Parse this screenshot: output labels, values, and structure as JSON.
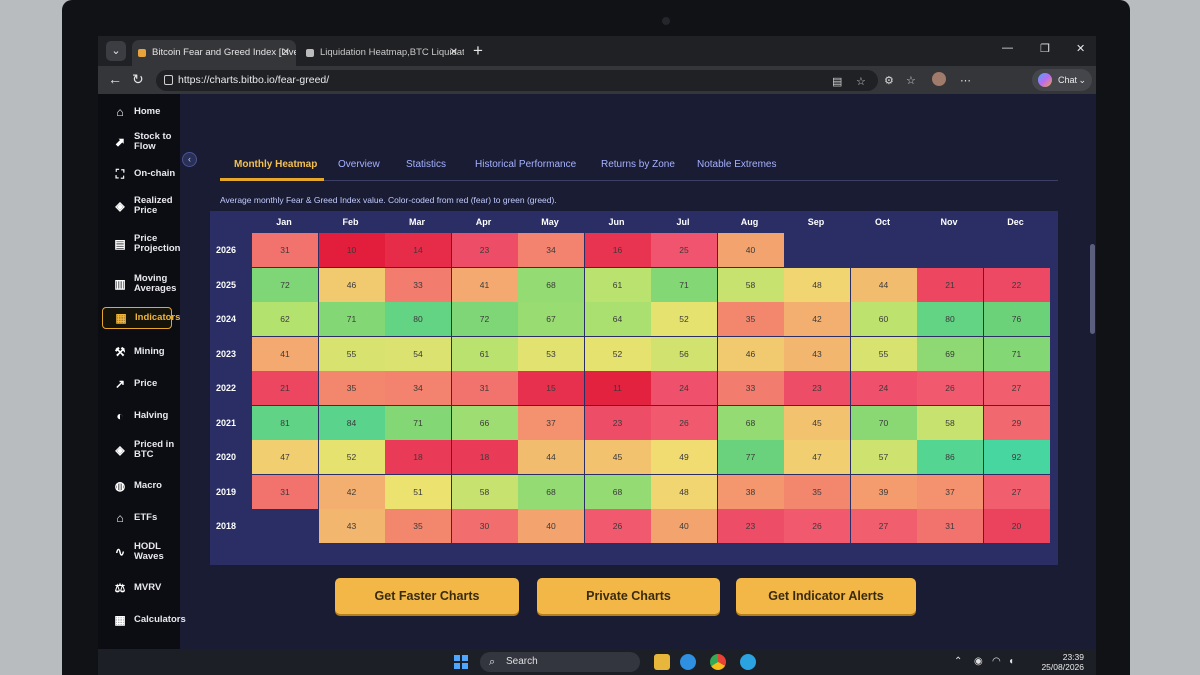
{
  "browser": {
    "tabs": [
      {
        "title": "Bitcoin Fear and Greed Index [Live",
        "active": true
      },
      {
        "title": "Liquidation Heatmap,BTC Liquidat",
        "active": false
      }
    ],
    "url": "https://charts.bitbo.io/fear-greed/",
    "chat_label": "Chat"
  },
  "sidebar": {
    "items": [
      {
        "label": "Home",
        "icon": "home-icon",
        "glyph": "⌂"
      },
      {
        "label": "Stock to Flow",
        "icon": "trend-chart-icon",
        "glyph": "⬈"
      },
      {
        "label": "On-chain",
        "icon": "network-icon",
        "glyph": "⛶"
      },
      {
        "label": "Realized Price",
        "icon": "tag-icon",
        "glyph": "◈"
      },
      {
        "label": "Price Projection",
        "icon": "projection-chart-icon",
        "glyph": "▤"
      },
      {
        "label": "Moving Averages",
        "icon": "bar-trend-icon",
        "glyph": "▥"
      },
      {
        "label": "Indicators",
        "icon": "indicators-icon",
        "glyph": "▦"
      },
      {
        "label": "Mining",
        "icon": "mining-icon",
        "glyph": "⚒"
      },
      {
        "label": "Price",
        "icon": "price-trend-icon",
        "glyph": "↗"
      },
      {
        "label": "Halving",
        "icon": "halving-icon",
        "glyph": "◐"
      },
      {
        "label": "Priced in BTC",
        "icon": "btc-tag-icon",
        "glyph": "◈"
      },
      {
        "label": "Macro",
        "icon": "globe-icon",
        "glyph": "◍"
      },
      {
        "label": "ETFs",
        "icon": "bank-icon",
        "glyph": "⌂"
      },
      {
        "label": "HODL Waves",
        "icon": "wave-icon",
        "glyph": "∿"
      },
      {
        "label": "MVRV",
        "icon": "scale-icon",
        "glyph": "⚖"
      },
      {
        "label": "Calculators",
        "icon": "calculator-icon",
        "glyph": "▦"
      }
    ],
    "active_index": 6
  },
  "tabs": [
    "Monthly Heatmap",
    "Overview",
    "Statistics",
    "Historical Performance",
    "Returns by Zone",
    "Notable Extremes"
  ],
  "description": "Average monthly Fear & Greed Index value. Color-coded from red (fear) to green (greed).",
  "chart_data": {
    "type": "heatmap",
    "columns": [
      "Jan",
      "Feb",
      "Mar",
      "Apr",
      "May",
      "Jun",
      "Jul",
      "Aug",
      "Sep",
      "Oct",
      "Nov",
      "Dec"
    ],
    "rows": [
      "2026",
      "2025",
      "2024",
      "2023",
      "2022",
      "2021",
      "2020",
      "2019",
      "2018"
    ],
    "values": [
      [
        31,
        10,
        14,
        23,
        34,
        16,
        25,
        40,
        null,
        null,
        null,
        null
      ],
      [
        72,
        46,
        33,
        41,
        68,
        61,
        71,
        58,
        48,
        44,
        21,
        22
      ],
      [
        62,
        71,
        80,
        72,
        67,
        64,
        52,
        35,
        42,
        60,
        80,
        76
      ],
      [
        41,
        55,
        54,
        61,
        53,
        52,
        56,
        46,
        43,
        55,
        69,
        71
      ],
      [
        21,
        35,
        34,
        31,
        15,
        11,
        24,
        33,
        23,
        24,
        26,
        27
      ],
      [
        81,
        84,
        71,
        66,
        37,
        23,
        26,
        68,
        45,
        70,
        58,
        29
      ],
      [
        47,
        52,
        18,
        18,
        44,
        45,
        49,
        77,
        47,
        57,
        86,
        92
      ],
      [
        31,
        42,
        51,
        58,
        68,
        68,
        48,
        38,
        35,
        39,
        37,
        27
      ],
      [
        null,
        43,
        35,
        30,
        40,
        26,
        40,
        23,
        26,
        27,
        31,
        20
      ]
    ],
    "color_scale": {
      "fear": "#e8334a",
      "greed": "#4fd68f"
    }
  },
  "buttons": [
    "Get Faster Charts",
    "Private Charts",
    "Get Indicator Alerts"
  ],
  "taskbar": {
    "search_label": "Search",
    "time": "23:39",
    "date": "25/08/2026"
  }
}
